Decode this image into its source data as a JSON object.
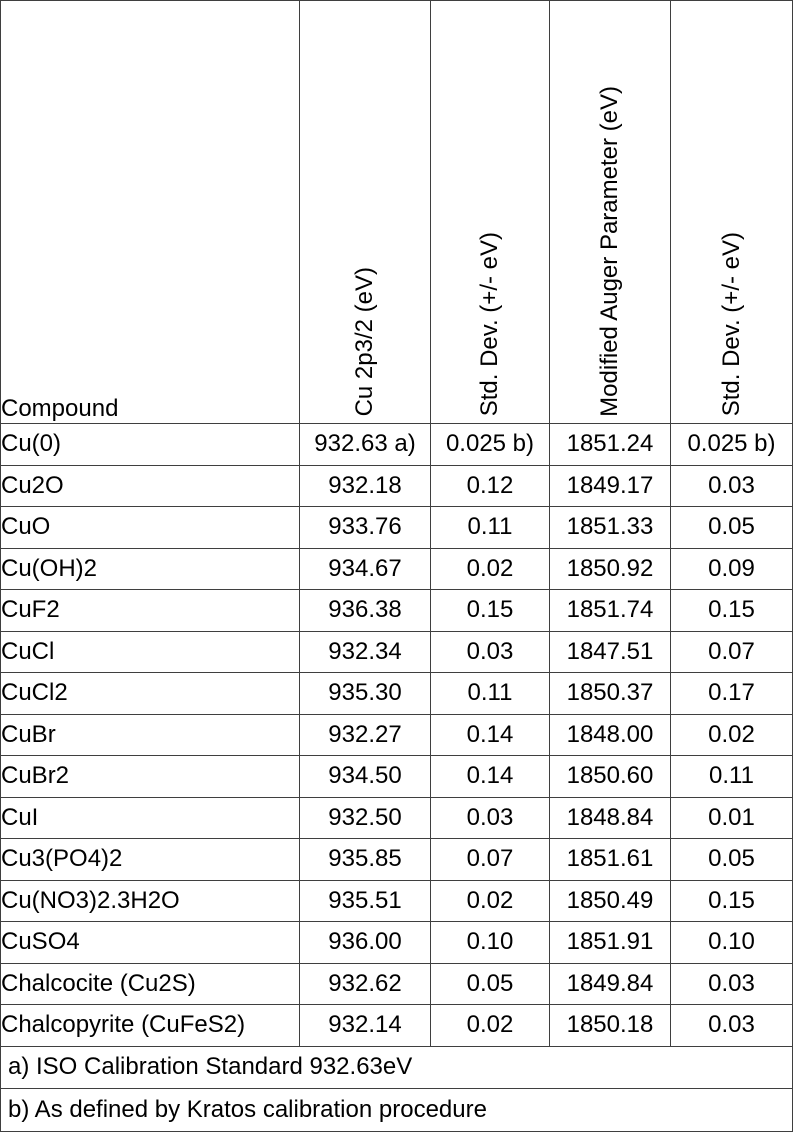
{
  "colors": {
    "border": "#3f3f3f",
    "text": "#000000",
    "background": "#ffffff"
  },
  "chart_data": {
    "type": "table",
    "columns": [
      "Compound",
      "Cu 2p3/2 (eV)",
      "Std. Dev. (+/- eV)",
      "Modified Auger Parameter (eV)",
      "Std. Dev. (+/- eV)"
    ],
    "rows": [
      [
        "Cu(0)",
        "932.63 a)",
        "0.025 b)",
        "1851.24",
        "0.025 b)"
      ],
      [
        "Cu2O",
        "932.18",
        "0.12",
        "1849.17",
        "0.03"
      ],
      [
        "CuO",
        "933.76",
        "0.11",
        "1851.33",
        "0.05"
      ],
      [
        "Cu(OH)2",
        "934.67",
        "0.02",
        "1850.92",
        "0.09"
      ],
      [
        "CuF2",
        "936.38",
        "0.15",
        "1851.74",
        "0.15"
      ],
      [
        "CuCl",
        "932.34",
        "0.03",
        "1847.51",
        "0.07"
      ],
      [
        "CuCl2",
        "935.30",
        "0.11",
        "1850.37",
        "0.17"
      ],
      [
        "CuBr",
        "932.27",
        "0.14",
        "1848.00",
        "0.02"
      ],
      [
        "CuBr2",
        "934.50",
        "0.14",
        "1850.60",
        "0.11"
      ],
      [
        "CuI",
        "932.50",
        "0.03",
        "1848.84",
        "0.01"
      ],
      [
        "Cu3(PO4)2",
        "935.85",
        "0.07",
        "1851.61",
        "0.05"
      ],
      [
        "Cu(NO3)2.3H2O",
        "935.51",
        "0.02",
        "1850.49",
        "0.15"
      ],
      [
        "CuSO4",
        "936.00",
        "0.10",
        "1851.91",
        "0.10"
      ],
      [
        "Chalcocite (Cu2S)",
        "932.62",
        "0.05",
        "1849.84",
        "0.03"
      ],
      [
        "Chalcopyrite (CuFeS2)",
        "932.14",
        "0.02",
        "1850.18",
        "0.03"
      ]
    ],
    "footnotes": [
      "a) ISO Calibration Standard 932.63eV",
      "b) As defined by Kratos calibration procedure"
    ]
  }
}
